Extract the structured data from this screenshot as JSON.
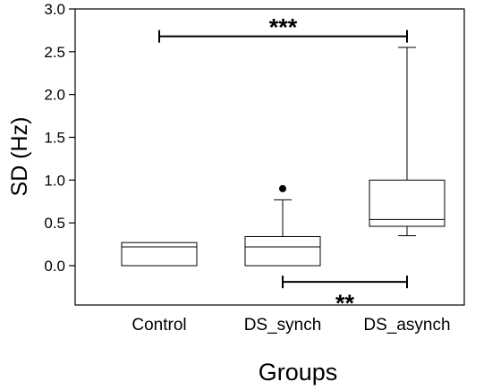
{
  "chart_data": {
    "type": "box",
    "xlabel": "Groups",
    "ylabel": "SD (Hz)",
    "ylim": [
      0.0,
      3.0
    ],
    "yticks": [
      "0.0",
      "0.5",
      "1.0",
      "1.5",
      "2.0",
      "2.5",
      "3.0"
    ],
    "categories": [
      "Control",
      "DS_synch",
      "DS_asynch"
    ],
    "boxes": [
      {
        "name": "Control",
        "whisker_low": 0.0,
        "q1": 0.0,
        "median": 0.22,
        "q3": 0.27,
        "whisker_high": 0.27,
        "outliers": []
      },
      {
        "name": "DS_synch",
        "whisker_low": 0.0,
        "q1": 0.0,
        "median": 0.22,
        "q3": 0.34,
        "whisker_high": 0.77,
        "outliers": [
          0.9
        ]
      },
      {
        "name": "DS_asynch",
        "whisker_low": 0.35,
        "q1": 0.46,
        "median": 0.54,
        "q3": 1.0,
        "whisker_high": 2.55,
        "outliers": []
      }
    ],
    "significance": [
      {
        "from": "Control",
        "to": "DS_asynch",
        "y": 2.68,
        "label": "***"
      },
      {
        "from": "DS_synch",
        "to": "DS_asynch",
        "y": -0.19,
        "label": "**"
      }
    ],
    "grid": false,
    "legend": "none"
  }
}
